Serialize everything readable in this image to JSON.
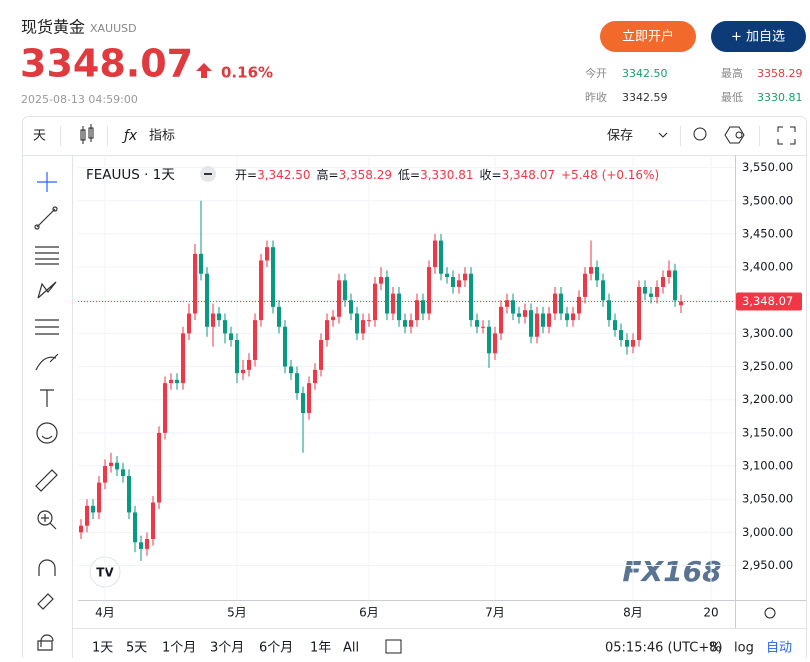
{
  "header": {
    "title": "现货黄金",
    "symbol": "XAUUSD",
    "price": "3348.07",
    "change": "0.16%",
    "time": "2025-08-13 04:59:00",
    "buttons": [
      "立即开户",
      "+ 加自选"
    ],
    "stats": [
      {
        "label": "今开",
        "value": "3342.50"
      },
      {
        "label": "最高",
        "value": "3358.29"
      },
      {
        "label": "昨收",
        "value": "3342.59"
      },
      {
        "label": "最低",
        "value": "3330.81"
      }
    ]
  },
  "toolbar": {
    "interval": "天",
    "indicators": "指标",
    "save": "保存"
  },
  "bottom_bar": {
    "ranges": [
      "1天",
      "5天",
      "1个月",
      "3个月",
      "6个月",
      "1年",
      "All"
    ],
    "clock": "05:15:46 (UTC+8)",
    "percent": "%",
    "log": "log",
    "auto": "自动"
  },
  "watermark": "FX168",
  "chart_data": {
    "type": "candlestick",
    "legend_title": "FEAUUS · 1天",
    "ohlc_legend": [
      {
        "key": "开=",
        "value": "3,342.50"
      },
      {
        "key": "高=",
        "value": "3,358.29"
      },
      {
        "key": "低=",
        "value": "3,330.81"
      },
      {
        "key": "收=",
        "value": "3,348.07"
      }
    ],
    "change": "+5.48 (+0.16%)",
    "price_label": "3,348.07",
    "up_color": "#f23645",
    "down_color": "#089981",
    "grid": true,
    "categories": [
      null,
      null,
      null,
      null,
      "4月",
      null,
      null,
      null,
      null,
      null,
      null,
      null,
      null,
      null,
      null,
      null,
      null,
      null,
      null,
      null,
      null,
      null,
      null,
      null,
      null,
      null,
      "5月",
      null,
      null,
      null,
      null,
      null,
      null,
      null,
      null,
      null,
      null,
      null,
      null,
      null,
      null,
      null,
      null,
      null,
      null,
      null,
      null,
      null,
      "6月",
      null,
      null,
      null,
      null,
      null,
      null,
      null,
      null,
      null,
      null,
      null,
      null,
      null,
      null,
      null,
      null,
      null,
      null,
      null,
      null,
      "7月",
      null,
      null,
      null,
      null,
      null,
      null,
      null,
      null,
      null,
      null,
      null,
      null,
      null,
      null,
      null,
      null,
      null,
      null,
      null,
      null,
      null,
      null,
      "8月",
      null,
      null,
      null,
      null,
      null,
      null,
      null,
      null,
      null,
      null,
      null,
      null,
      "20",
      null,
      null,
      null
    ],
    "open": [
      3000,
      3010,
      3040,
      3030,
      3075,
      3100,
      3105,
      3095,
      3085,
      3030,
      2985,
      2975,
      2990,
      3045,
      3150,
      3225,
      3230,
      3225,
      3300,
      3330,
      3420,
      3390,
      3310,
      3330,
      3320,
      3300,
      3290,
      3240,
      3245,
      3260,
      3320,
      3410,
      3430,
      3340,
      3310,
      3250,
      3240,
      3210,
      3180,
      3225,
      3245,
      3290,
      3320,
      3325,
      3380,
      3350,
      3330,
      3300,
      3320,
      3320,
      3375,
      3385,
      3330,
      3360,
      3320,
      3310,
      3320,
      3350,
      3330,
      3400,
      3440,
      3390,
      3385,
      3370,
      3380,
      3390,
      3320,
      3310,
      3310,
      3270,
      3300,
      3340,
      3350,
      3330,
      3325,
      3335,
      3295,
      3330,
      3310,
      3330,
      3360,
      3330,
      3320,
      3330,
      3355,
      3390,
      3400,
      3380,
      3350,
      3320,
      3305,
      3290,
      3280,
      3290,
      3370,
      3360,
      3355,
      3370,
      3385,
      3395,
      3342.5,
      null,
      null,
      null,
      null,
      null,
      null,
      null,
      null
    ],
    "high": [
      3020,
      3050,
      3050,
      3085,
      3110,
      3120,
      3115,
      3105,
      3095,
      3040,
      2995,
      3000,
      3055,
      3160,
      3235,
      3240,
      3240,
      3310,
      3345,
      3435,
      3500,
      3400,
      3345,
      3340,
      3330,
      3310,
      3300,
      3260,
      3270,
      3330,
      3420,
      3440,
      3440,
      3350,
      3320,
      3260,
      3250,
      3220,
      3235,
      3255,
      3300,
      3330,
      3335,
      3390,
      3390,
      3360,
      3340,
      3330,
      3330,
      3385,
      3400,
      3395,
      3370,
      3370,
      3330,
      3330,
      3360,
      3360,
      3410,
      3450,
      3450,
      3400,
      3395,
      3390,
      3400,
      3400,
      3330,
      3320,
      3320,
      3310,
      3350,
      3360,
      3360,
      3340,
      3345,
      3345,
      3340,
      3340,
      3340,
      3370,
      3370,
      3340,
      3340,
      3365,
      3400,
      3440,
      3410,
      3390,
      3360,
      3330,
      3315,
      3300,
      3300,
      3380,
      3380,
      3370,
      3380,
      3395,
      3410,
      3405,
      3358.29,
      null,
      null,
      null,
      null,
      null,
      null,
      null,
      null
    ],
    "low": [
      2990,
      3000,
      3020,
      3020,
      3065,
      3090,
      3085,
      3075,
      3020,
      2970,
      2957,
      2965,
      2980,
      3035,
      3140,
      3215,
      3215,
      3215,
      3290,
      3320,
      3380,
      3295,
      3280,
      3310,
      3285,
      3280,
      3225,
      3230,
      3235,
      3250,
      3310,
      3400,
      3330,
      3300,
      3240,
      3230,
      3200,
      3120,
      3170,
      3215,
      3235,
      3280,
      3310,
      3315,
      3340,
      3320,
      3290,
      3290,
      3310,
      3310,
      3365,
      3320,
      3320,
      3310,
      3300,
      3300,
      3310,
      3320,
      3320,
      3390,
      3380,
      3375,
      3360,
      3360,
      3370,
      3310,
      3300,
      3300,
      3248,
      3260,
      3290,
      3330,
      3320,
      3315,
      3315,
      3285,
      3285,
      3300,
      3300,
      3320,
      3320,
      3310,
      3310,
      3320,
      3345,
      3380,
      3370,
      3340,
      3310,
      3295,
      3280,
      3268,
      3270,
      3280,
      3350,
      3345,
      3345,
      3360,
      3375,
      3340,
      3330.81,
      null,
      null,
      null,
      null,
      null,
      null,
      null,
      null
    ],
    "close": [
      3010,
      3040,
      3030,
      3075,
      3100,
      3105,
      3095,
      3085,
      3030,
      2985,
      2975,
      2990,
      3045,
      3150,
      3225,
      3230,
      3225,
      3300,
      3330,
      3420,
      3390,
      3310,
      3330,
      3320,
      3300,
      3290,
      3240,
      3245,
      3260,
      3320,
      3410,
      3430,
      3340,
      3310,
      3250,
      3240,
      3210,
      3180,
      3225,
      3245,
      3290,
      3320,
      3325,
      3380,
      3350,
      3330,
      3300,
      3320,
      3320,
      3375,
      3385,
      3330,
      3360,
      3320,
      3310,
      3320,
      3350,
      3330,
      3400,
      3440,
      3390,
      3385,
      3370,
      3380,
      3390,
      3320,
      3310,
      3310,
      3270,
      3300,
      3340,
      3350,
      3330,
      3325,
      3335,
      3295,
      3330,
      3310,
      3330,
      3360,
      3330,
      3320,
      3330,
      3355,
      3390,
      3400,
      3380,
      3350,
      3320,
      3305,
      3290,
      3280,
      3290,
      3370,
      3360,
      3355,
      3370,
      3385,
      3395,
      3350,
      3348.07,
      null,
      null,
      null,
      null,
      null,
      null,
      null,
      null
    ],
    "ylim": [
      2898,
      3569
    ],
    "yticks": [
      {
        "value": 2950,
        "label": "2,950.00"
      },
      {
        "value": 3000,
        "label": "3,000.00"
      },
      {
        "value": 3050,
        "label": "3,050.00"
      },
      {
        "value": 3100,
        "label": "3,100.00"
      },
      {
        "value": 3150,
        "label": "3,150.00"
      },
      {
        "value": 3200,
        "label": "3,200.00"
      },
      {
        "value": 3250,
        "label": "3,250.00"
      },
      {
        "value": 3300,
        "label": "3,300.00"
      },
      {
        "value": 3350,
        "label": "3,350.00"
      },
      {
        "value": 3400,
        "label": "3,400.00"
      },
      {
        "value": 3450,
        "label": "3,450.00"
      },
      {
        "value": 3500,
        "label": "3,500.00"
      },
      {
        "value": 3550,
        "label": "3,550.00"
      }
    ]
  }
}
